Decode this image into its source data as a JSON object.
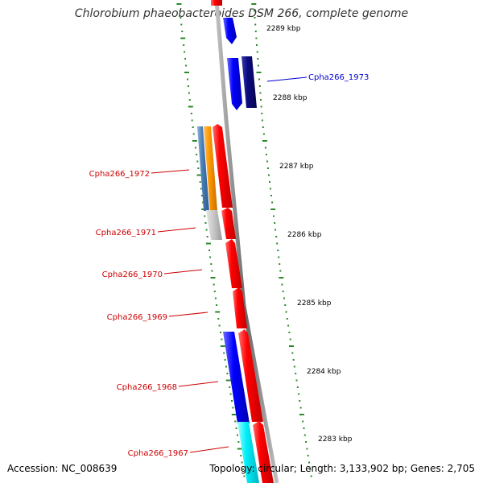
{
  "title": "Chlorobium phaeobacteroides DSM 266, complete genome",
  "accession": "Accession: NC_008639",
  "summary": "Topology: circular; Length: 3,133,902 bp; Genes: 2,705",
  "colors": {
    "backbone": "#8c8c8c",
    "tick": "#2a8a2a",
    "forward_label": "#0000cc",
    "reverse_label": "#cc0000"
  },
  "scale_labels": [
    "2289 kbp",
    "2288 kbp",
    "2287 kbp",
    "2286 kbp",
    "2285 kbp",
    "2284 kbp",
    "2283 kbp"
  ],
  "genes": [
    {
      "label": "Cpha266_1973",
      "strand": "forward"
    },
    {
      "label": "Cpha266_1972",
      "strand": "reverse"
    },
    {
      "label": "Cpha266_1971",
      "strand": "reverse"
    },
    {
      "label": "Cpha266_1970",
      "strand": "reverse"
    },
    {
      "label": "Cpha266_1969",
      "strand": "reverse"
    },
    {
      "label": "Cpha266_1968",
      "strand": "reverse"
    },
    {
      "label": "Cpha266_1967",
      "strand": "reverse"
    }
  ]
}
